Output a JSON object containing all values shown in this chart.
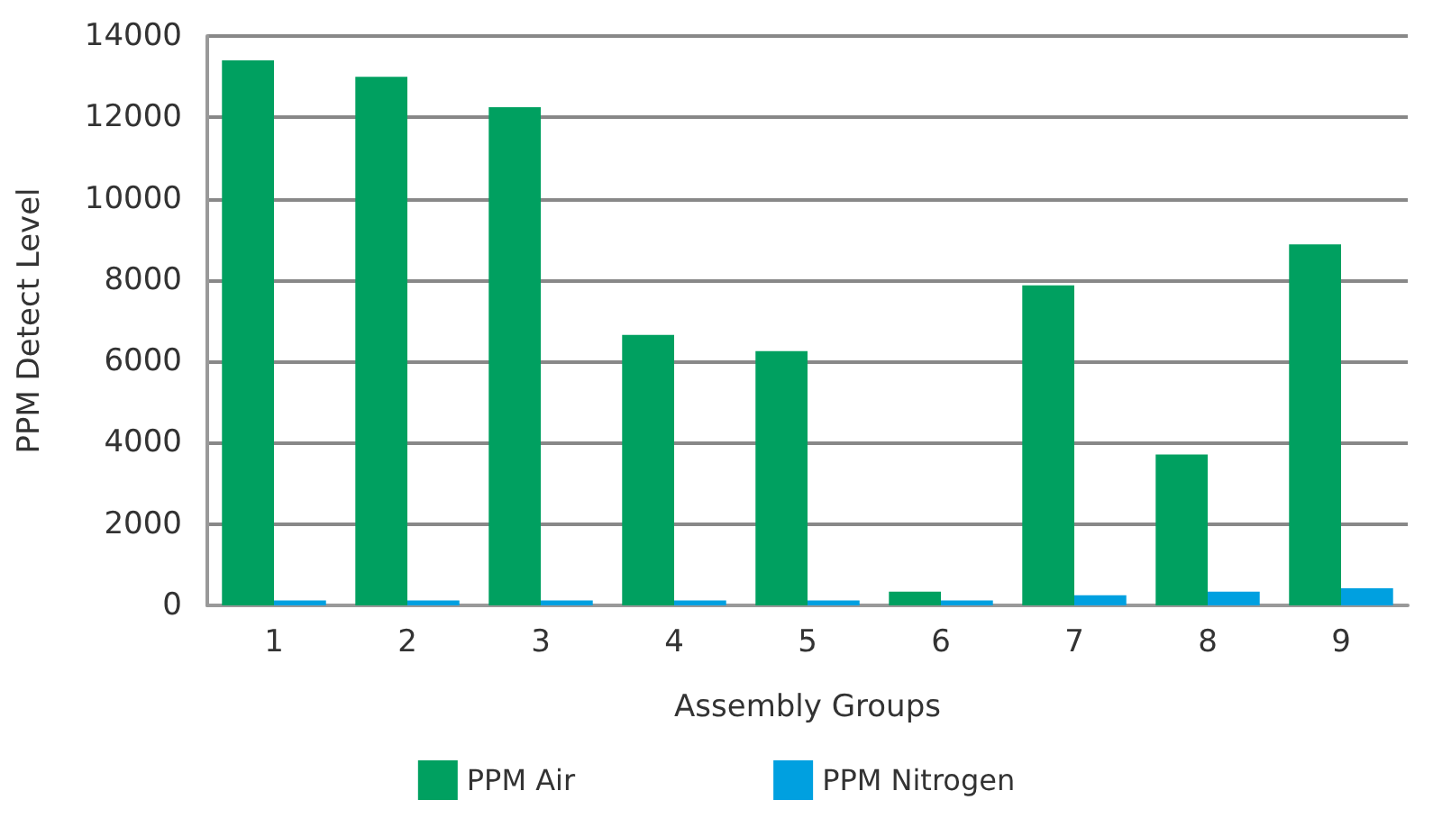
{
  "chart_data": {
    "type": "bar",
    "xlabel": "Assembly Groups",
    "ylabel": "PPM Detect Level",
    "categories": [
      "1",
      "2",
      "3",
      "4",
      "5",
      "6",
      "7",
      "8",
      "9"
    ],
    "series": [
      {
        "name": "PPM Air",
        "color": "#00a060",
        "values": [
          13400,
          13000,
          12250,
          6650,
          6250,
          340,
          7870,
          3710,
          8880
        ]
      },
      {
        "name": "PPM Nitrogen",
        "color": "#00a0e0",
        "values": [
          120,
          120,
          120,
          120,
          120,
          120,
          250,
          340,
          420
        ]
      }
    ],
    "ylim": [
      0,
      14000
    ],
    "yticks": [
      0,
      2000,
      4000,
      6000,
      8000,
      10000,
      12000,
      14000
    ],
    "grid": "y",
    "legend": "bottom"
  }
}
